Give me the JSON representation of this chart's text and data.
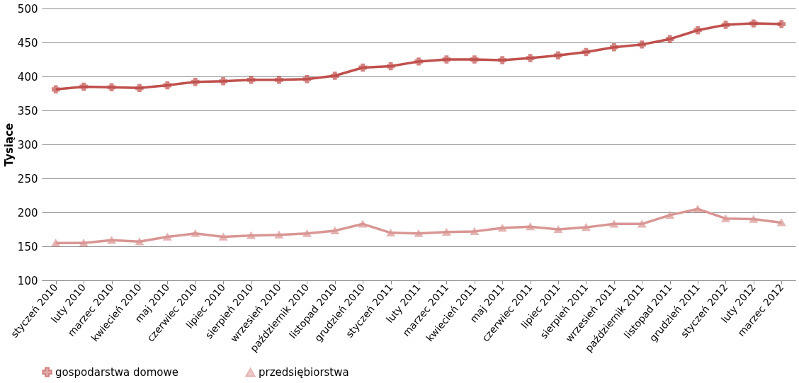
{
  "chart_data": {
    "type": "line",
    "ylabel": "Tysiące",
    "categories": [
      "styczeń 2010",
      "luty 2010",
      "marzec 2010",
      "kwiecień 2010",
      "maj 2010",
      "czerwiec 2010",
      "lipiec 2010",
      "sierpień 2010",
      "wrzesień 2010",
      "październik 2010",
      "listopad 2010",
      "grudzień 2010",
      "styczeń 2011",
      "luty 2011",
      "marzec 2011",
      "kwiecień 2011",
      "maj 2011",
      "czerwiec 2011",
      "lipiec 2011",
      "sierpień 2011",
      "wrzesień 2011",
      "październik 2011",
      "listopad 2011",
      "grudzień 2011",
      "styczeń 2012",
      "luty 2012",
      "marzec 2012"
    ],
    "series": [
      {
        "name": "gospodarstwa domowe",
        "color": "#c0504d",
        "marker": "cross",
        "values": [
          381,
          385,
          384,
          383,
          387,
          392,
          393,
          395,
          395,
          396,
          401,
          413,
          415,
          422,
          425,
          425,
          424,
          427,
          431,
          436,
          443,
          447,
          455,
          468,
          476,
          478,
          477
        ]
      },
      {
        "name": "przedsiębiorstwa",
        "color": "#d99694",
        "marker": "triangle",
        "values": [
          155,
          155,
          159,
          157,
          164,
          169,
          164,
          166,
          167,
          169,
          173,
          183,
          170,
          169,
          171,
          172,
          177,
          179,
          175,
          178,
          183,
          183,
          196,
          205,
          191,
          190,
          185
        ]
      }
    ],
    "ylim": [
      100,
      500
    ],
    "yticks": [
      100,
      150,
      200,
      250,
      300,
      350,
      400,
      450,
      500
    ],
    "grid": "y",
    "legend": "bottom",
    "line_style": "solid"
  }
}
